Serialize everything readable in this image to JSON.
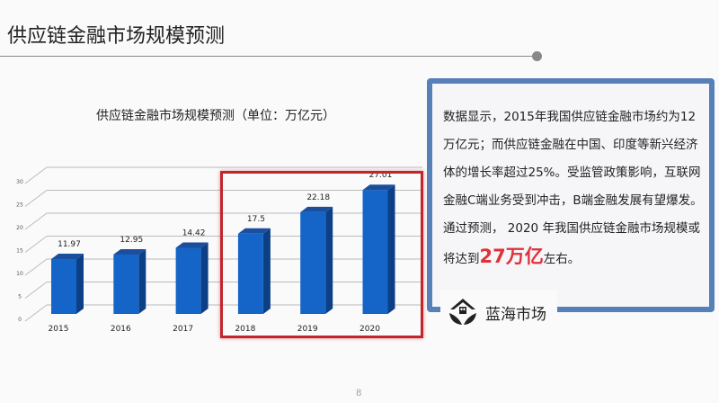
{
  "slide": {
    "title": "供应链金融市场规模预测",
    "page_number": "8"
  },
  "chart_data": {
    "type": "bar",
    "title": "供应链金融市场规模预测（单位：万亿元）",
    "categories": [
      "2015",
      "2016",
      "2017",
      "2018",
      "2019",
      "2020"
    ],
    "values": [
      11.97,
      12.95,
      14.42,
      17.5,
      22.18,
      27.01
    ],
    "value_labels": [
      "11.97",
      "12.95",
      "14.42",
      "17.5",
      "22.18",
      "27.01"
    ],
    "ylim": [
      0,
      30
    ],
    "yticks": [
      "0",
      "5",
      "10",
      "15",
      "20",
      "25",
      "30"
    ],
    "grid": true,
    "bar_color": "#1565c8",
    "highlight": {
      "categories": [
        "2018",
        "2019",
        "2020"
      ],
      "color": "#c0262c"
    }
  },
  "panel": {
    "text_before": "数据显示，2015年我国供应链金融市场约为12万亿元；而供应链金融在中国、印度等新兴经济体的增长率超过25%。受监管政策影响，互联网金融C端业务受到冲击，B端金融发展有望爆发。通过预测， 2020 年我国供应链金融市场规模或将达到",
    "highlight": "27万亿",
    "text_after": "左右。",
    "border_color": "#5580b8"
  },
  "logo": {
    "text": "蓝海市场",
    "icon": "house-leaf-icon"
  }
}
